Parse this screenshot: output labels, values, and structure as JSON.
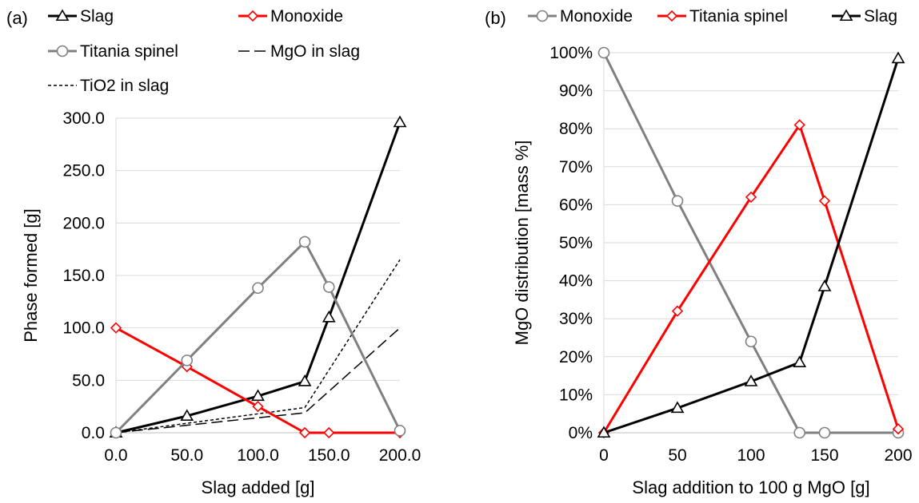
{
  "chart_data": [
    {
      "panel_label": "(a)",
      "type": "line",
      "xlabel": "Slag added [g]",
      "ylabel": "Phase formed [g]",
      "xlim": [
        0,
        200
      ],
      "ylim": [
        0,
        300
      ],
      "xticks": [
        "0.0",
        "50.0",
        "100.0",
        "150.0",
        "200.0"
      ],
      "yticks": [
        "0.0",
        "50.0",
        "100.0",
        "150.0",
        "200.0",
        "250.0",
        "300.0"
      ],
      "grid": "horizontal",
      "legend_position": "top",
      "series": [
        {
          "name": "Slag",
          "color": "#000000",
          "style": "solid",
          "marker": "triangle",
          "x": [
            0,
            50,
            100,
            133,
            150,
            200
          ],
          "y": [
            0,
            16,
            35,
            49,
            110,
            296
          ]
        },
        {
          "name": "Monoxide",
          "color": "#ff0000",
          "style": "solid",
          "marker": "diamond",
          "x": [
            0,
            50,
            100,
            133,
            150,
            200
          ],
          "y": [
            100,
            63,
            25,
            0,
            0,
            0
          ]
        },
        {
          "name": "Titania spinel",
          "color": "#808080",
          "style": "solid",
          "marker": "circle",
          "x": [
            0,
            50,
            100,
            133,
            150,
            200
          ],
          "y": [
            0,
            69,
            138,
            182,
            139,
            2
          ]
        },
        {
          "name": "MgO in slag",
          "color": "#000000",
          "style": "dashed",
          "marker": "none",
          "x": [
            0,
            133,
            200
          ],
          "y": [
            0,
            19,
            100
          ]
        },
        {
          "name": "TiO2 in slag",
          "color": "#000000",
          "style": "dotted",
          "marker": "none",
          "x": [
            0,
            133,
            200
          ],
          "y": [
            0,
            24,
            165
          ]
        }
      ]
    },
    {
      "panel_label": "(b)",
      "type": "line",
      "xlabel": "Slag addition to 100 g MgO [g]",
      "ylabel": "MgO distribution [mass %]",
      "xlim": [
        0,
        200
      ],
      "ylim": [
        0,
        100
      ],
      "xticks": [
        "0",
        "50",
        "100",
        "150",
        "200"
      ],
      "yticks": [
        "0%",
        "10%",
        "20%",
        "30%",
        "40%",
        "50%",
        "60%",
        "70%",
        "80%",
        "90%",
        "100%"
      ],
      "grid": "horizontal",
      "legend_position": "top",
      "series": [
        {
          "name": "Monoxide",
          "color": "#808080",
          "style": "solid",
          "marker": "circle",
          "x": [
            0,
            50,
            100,
            133,
            150,
            200
          ],
          "y": [
            100,
            61,
            24,
            0,
            0,
            0
          ]
        },
        {
          "name": "Titania spinel",
          "color": "#ff0000",
          "style": "solid",
          "marker": "diamond",
          "x": [
            0,
            50,
            100,
            133,
            150,
            200
          ],
          "y": [
            0,
            32,
            62,
            81,
            61,
            1
          ]
        },
        {
          "name": "Slag",
          "color": "#000000",
          "style": "solid",
          "marker": "triangle",
          "x": [
            0,
            50,
            100,
            133,
            150,
            200
          ],
          "y": [
            0,
            6.5,
            13.5,
            18.5,
            38.5,
            98.5
          ]
        }
      ]
    }
  ]
}
